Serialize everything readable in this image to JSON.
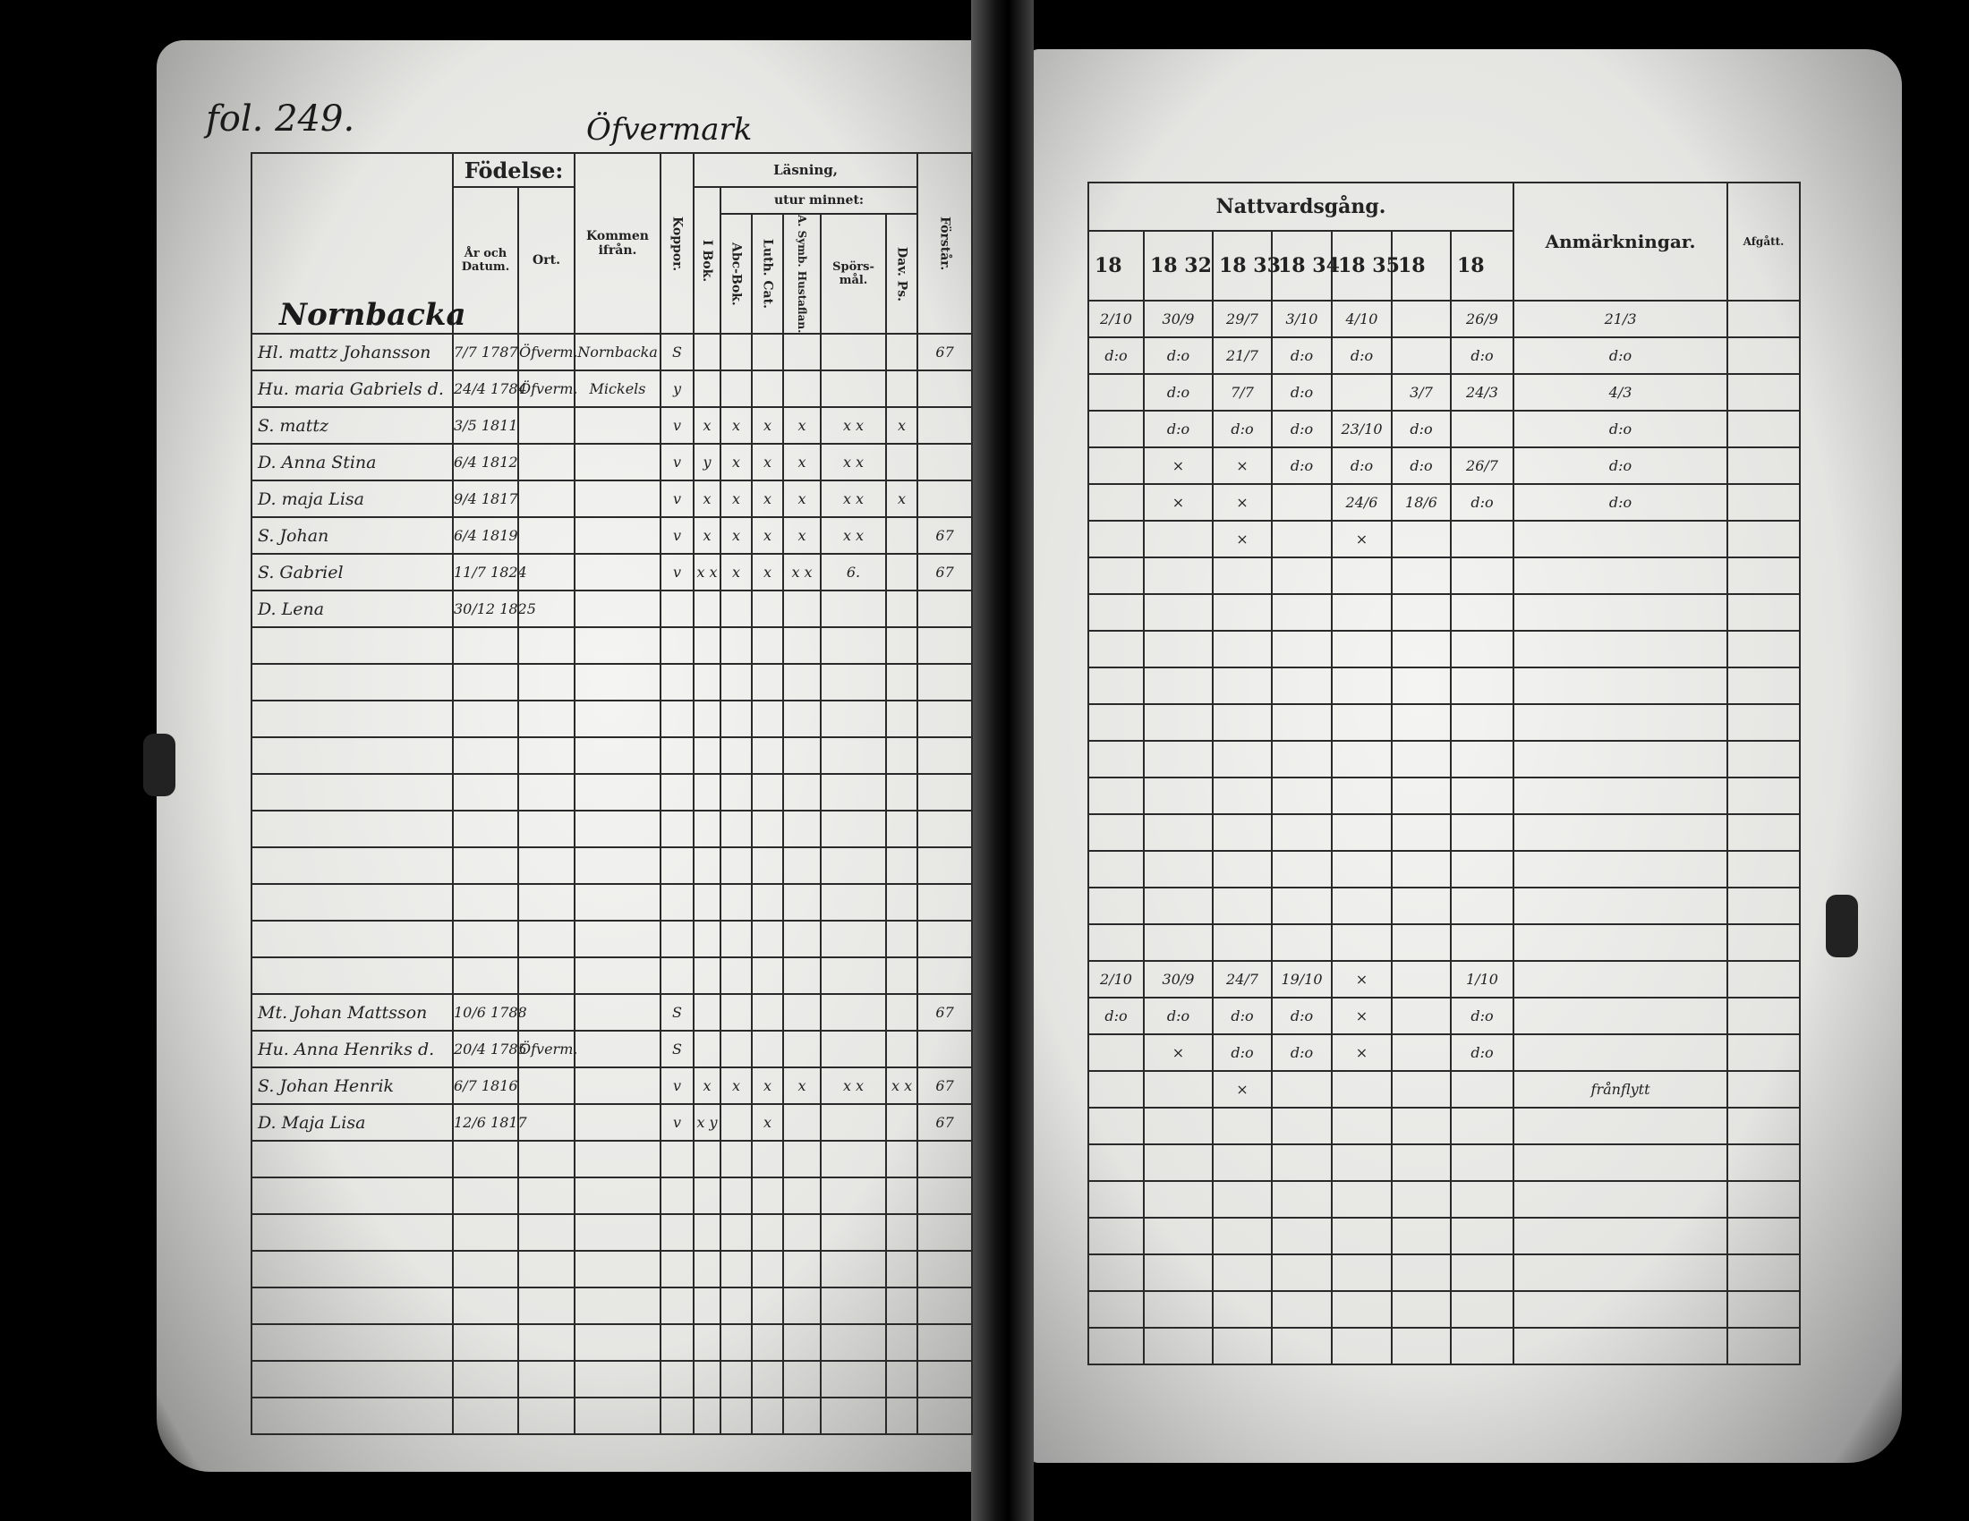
{
  "left_page": {
    "folio": "fol. 249.",
    "village": "Öfvermark",
    "header": {
      "name_cell": "Nornbacka",
      "fodelse": "Födelse:",
      "ar_och_datum": "År och Datum.",
      "ort": "Ort.",
      "kommen_ifran": "Kommen ifrån.",
      "koppor": "Koppor.",
      "lasning": "Läsning,",
      "i_bok": "I Bok.",
      "utur_minnet": "utur minnet:",
      "abc_bok": "Abc-Bok.",
      "luth_cat": "Luth. Cat.",
      "symb": "A. Symb. Hustaflan.",
      "spors_mal": "Spörs-mål.",
      "dav_ps": "Dav. Ps.",
      "forstar": "Förstår."
    },
    "rows": [
      [
        "Hl. mattz Johansson",
        "7/7 1787",
        "Öfverm.",
        "Nornbacka",
        "S",
        "",
        "",
        "",
        "",
        "",
        "",
        "67"
      ],
      [
        "Hu. maria Gabriels d.",
        "24/4 1784",
        "Öfverm.",
        "Mickels",
        "y",
        "",
        "",
        "",
        "",
        "",
        "",
        ""
      ],
      [
        "S. mattz",
        "3/5 1811",
        "",
        "",
        "v",
        "x",
        "x",
        "x",
        "x",
        "x x",
        "x",
        ""
      ],
      [
        "D. Anna Stina",
        "6/4 1812",
        "",
        "",
        "v",
        "y",
        "x",
        "x",
        "x",
        "x x",
        "",
        ""
      ],
      [
        "D. maja Lisa",
        "9/4 1817",
        "",
        "",
        "v",
        "x",
        "x",
        "x",
        "x",
        "x x",
        "x",
        ""
      ],
      [
        "S. Johan",
        "6/4 1819",
        "",
        "",
        "v",
        "x",
        "x",
        "x",
        "x",
        "x x",
        "",
        "67"
      ],
      [
        "S. Gabriel",
        "11/7 1824",
        "",
        "",
        "v",
        "x x",
        "x",
        "x",
        "x x",
        "6.",
        "",
        "67"
      ],
      [
        "D. Lena",
        "30/12 1825",
        "",
        "",
        "",
        "",
        "",
        "",
        "",
        "",
        "",
        ""
      ],
      [],
      [],
      [],
      [],
      [],
      [],
      [],
      [],
      [],
      [],
      [
        "Mt. Johan Mattsson",
        "10/6 1788",
        "",
        "",
        "S",
        "",
        "",
        "",
        "",
        "",
        "",
        "67"
      ],
      [
        "Hu. Anna Henriks d.",
        "20/4 1785",
        "Öfverm.",
        "",
        "S",
        "",
        "",
        "",
        "",
        "",
        "",
        ""
      ],
      [
        "S. Johan Henrik",
        "6/7 1816",
        "",
        "",
        "v",
        "x",
        "x",
        "x",
        "x",
        "x x",
        "x x",
        "67"
      ],
      [
        "D. Maja Lisa",
        "12/6 1817",
        "",
        "",
        "v",
        "x y",
        "",
        "x",
        "",
        "",
        "",
        "67"
      ],
      [],
      [],
      [],
      [],
      [],
      [],
      [],
      []
    ]
  },
  "right_page": {
    "header": {
      "nattvardsgang": "Nattvardsgång.",
      "years": [
        "18",
        "18 32",
        "18 33",
        "18 34",
        "18 35",
        "18",
        "18"
      ],
      "anmarkningar": "Anmärkningar.",
      "afgatt": "Afgått."
    },
    "rows": [
      [
        "2/10",
        "30/9",
        "29/7",
        "3/10",
        "4/10",
        "",
        "26/9",
        "21/3",
        ""
      ],
      [
        "d:o",
        "d:o",
        "21/7",
        "d:o",
        "d:o",
        "",
        "d:o",
        "d:o",
        ""
      ],
      [
        "",
        "d:o",
        "7/7",
        "d:o",
        "",
        "3/7",
        "24/3",
        "4/3",
        ""
      ],
      [
        "",
        "d:o",
        "d:o",
        "d:o",
        "23/10",
        "d:o",
        "",
        "d:o",
        ""
      ],
      [
        "",
        "×",
        "×",
        "d:o",
        "d:o",
        "d:o",
        "26/7",
        "d:o",
        ""
      ],
      [
        "",
        "×",
        "×",
        "",
        "24/6",
        "18/6",
        "d:o",
        "d:o",
        ""
      ],
      [
        "",
        "",
        "×",
        "",
        "×",
        "",
        "",
        "",
        ""
      ],
      [],
      [],
      [],
      [],
      [],
      [],
      [],
      [],
      [],
      [],
      [],
      [
        "2/10",
        "30/9",
        "24/7",
        "19/10",
        "×",
        "",
        "1/10",
        "",
        ""
      ],
      [
        "d:o",
        "d:o",
        "d:o",
        "d:o",
        "×",
        "",
        "d:o",
        "",
        ""
      ],
      [
        "",
        "×",
        "d:o",
        "d:o",
        "×",
        "",
        "d:o",
        "",
        ""
      ],
      [
        "",
        "",
        "×",
        "",
        "",
        "",
        "",
        "frånflytt",
        ""
      ],
      [],
      [],
      [],
      [],
      [],
      [],
      []
    ]
  }
}
